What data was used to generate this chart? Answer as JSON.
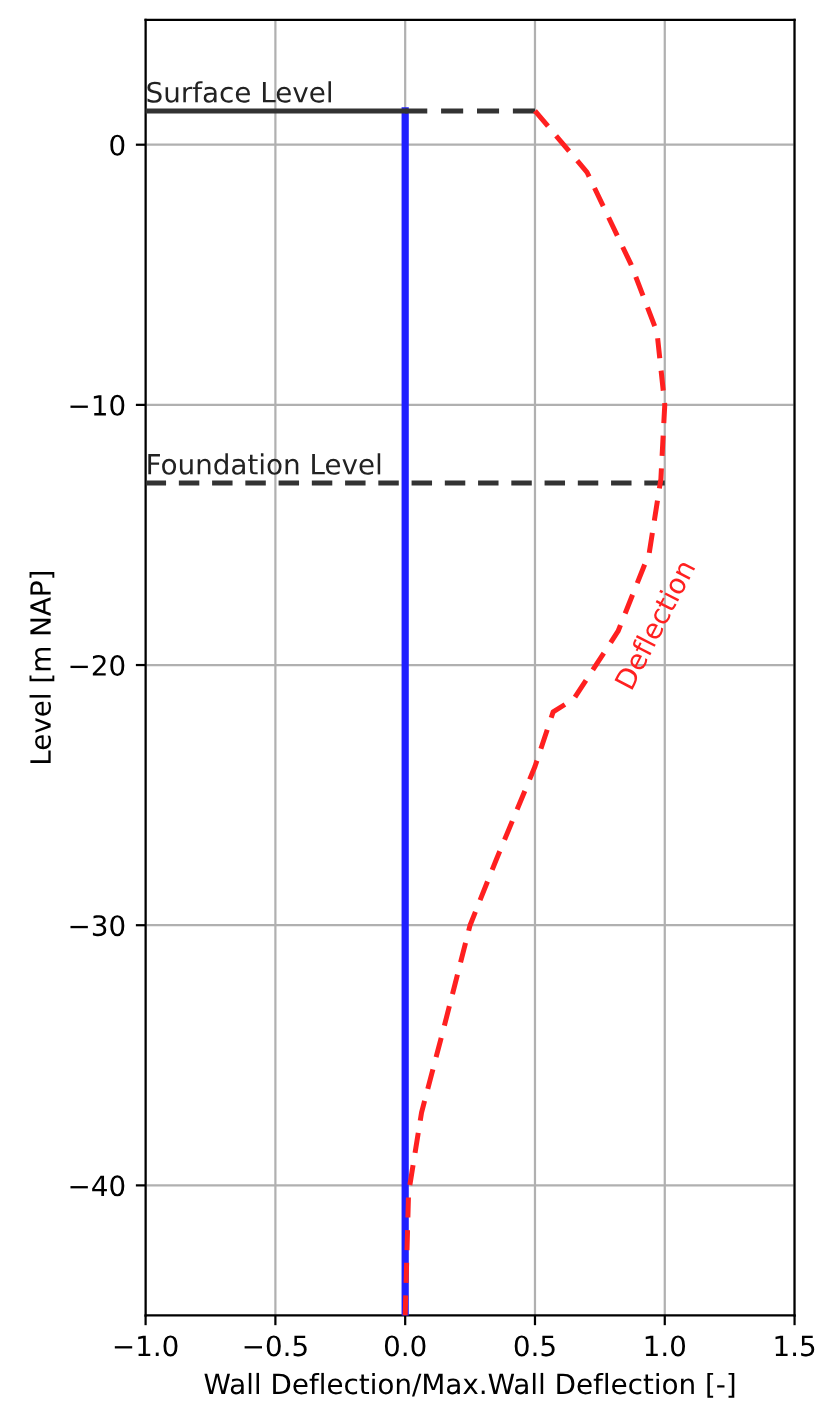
{
  "chart_data": {
    "type": "line",
    "xlabel": "Wall Deflection/Max.Wall Deflection [-]",
    "ylabel": "Level [m NAP]",
    "series": [
      {
        "color": "#2020ff",
        "line_style": "solid",
        "x": [
          0,
          0
        ],
        "values": [
          1.3,
          -45
        ]
      },
      {
        "color": "#333333",
        "line_style": "solid",
        "x": [
          -1,
          0
        ],
        "values": [
          1.3,
          1.3
        ]
      },
      {
        "color": "#333333",
        "line_style": "dashed",
        "x": [
          0,
          0.5
        ],
        "values": [
          1.3,
          1.3
        ]
      },
      {
        "color": "#333333",
        "line_style": "dashed",
        "x": [
          -1,
          1
        ],
        "values": [
          -13,
          -13
        ]
      },
      {
        "name": "Deflection",
        "color": "#ff2020",
        "line_style": "dashed",
        "x": [
          0.5,
          0.7,
          0.87,
          0.97,
          1.0,
          0.985,
          0.94,
          0.82,
          0.65,
          0.57,
          0.5,
          0.35,
          0.25,
          0.15,
          0.063,
          0.013,
          0
        ],
        "values": [
          1.3,
          -1.05,
          -4.6,
          -7.2,
          -10,
          -12.85,
          -15.7,
          -18.7,
          -21.3,
          -21.8,
          -23.9,
          -27.5,
          -30,
          -33.9,
          -37.2,
          -40.3,
          -45
        ]
      }
    ],
    "annotations": [
      {
        "text": "Surface Level",
        "x": -1,
        "y": 1.3
      },
      {
        "text": "Foundation Level",
        "x": -1,
        "y": -13
      }
    ],
    "xlim": [
      -1,
      1.5
    ],
    "ylim": [
      -45,
      4.8
    ],
    "xticks": [
      {
        "value": -1,
        "label": "−1.0"
      },
      {
        "value": -0.5,
        "label": "−0.5"
      },
      {
        "value": 0,
        "label": "0.0"
      },
      {
        "value": 0.5,
        "label": "0.5"
      },
      {
        "value": 1,
        "label": "1.0"
      },
      {
        "value": 1.5,
        "label": "1.5"
      }
    ],
    "yticks": [
      {
        "value": -40,
        "label": "−40"
      },
      {
        "value": -30,
        "label": "−30"
      },
      {
        "value": -20,
        "label": "−20"
      },
      {
        "value": -10,
        "label": "−10"
      },
      0
    ],
    "grid": true
  }
}
